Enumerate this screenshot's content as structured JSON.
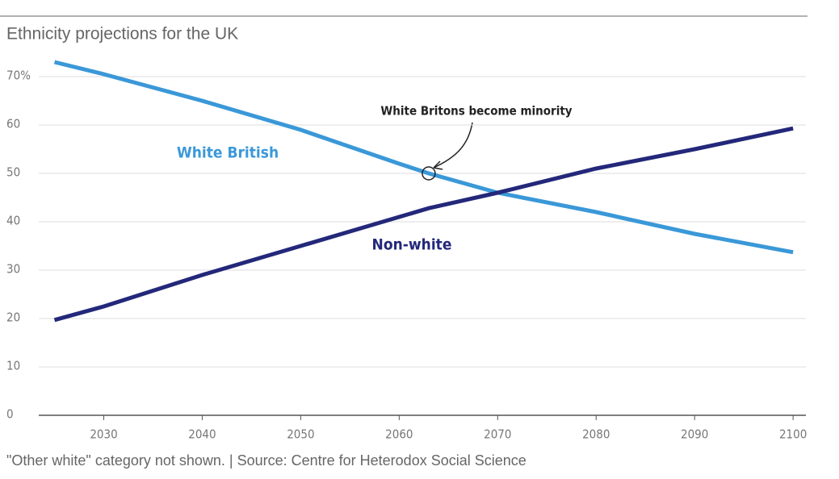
{
  "chart_data": {
    "type": "line",
    "title": "Ethnicity projections for the UK",
    "footnote": "\"Other white\" category not shown. | Source: Centre for Heterodox Social Science",
    "annotation": "White Britons become minority",
    "x": [
      2025,
      2030,
      2040,
      2050,
      2060,
      2063,
      2070,
      2080,
      2090,
      2100
    ],
    "series": [
      {
        "name": "White British",
        "color": "#3a98d8",
        "values": [
          73,
          70.5,
          65,
          59,
          52,
          50,
          46,
          42,
          37.5,
          33.7
        ]
      },
      {
        "name": "Non-white",
        "color": "#23287a",
        "values": [
          19.7,
          22.5,
          29,
          35,
          41,
          42.8,
          46,
          51,
          55,
          59.3
        ]
      }
    ],
    "xlim": [
      2023.4,
      2101.3
    ],
    "xticks": [
      2030,
      2040,
      2050,
      2060,
      2070,
      2080,
      2090,
      2100
    ],
    "ylim": [
      0,
      70
    ],
    "yticks": [
      0,
      10,
      20,
      30,
      40,
      50,
      60,
      {
        "value": 70,
        "label": "70%"
      }
    ],
    "grid": true
  }
}
